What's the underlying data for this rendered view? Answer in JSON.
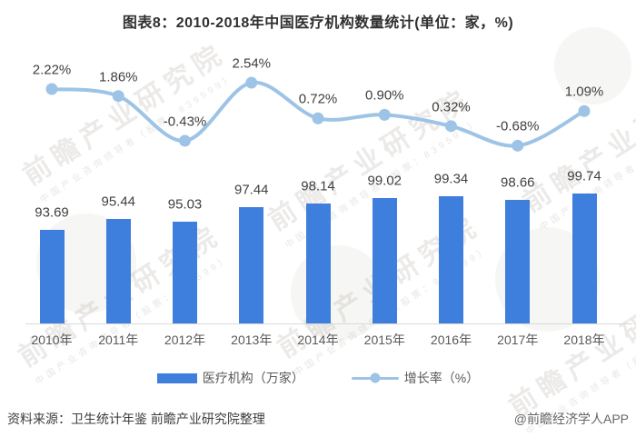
{
  "chart_data": {
    "type": "bar+line",
    "title": "图表8：2010-2018年中国医疗机构数量统计(单位：家，%)",
    "xlabel": "",
    "ylabel": "",
    "grid": false,
    "legend_position": "bottom",
    "value_axis_visible": false,
    "categories": [
      "2010年",
      "2011年",
      "2012年",
      "2013年",
      "2014年",
      "2015年",
      "2016年",
      "2017年",
      "2018年"
    ],
    "series": [
      {
        "name": "医疗机构（万家）",
        "type": "bar",
        "color": "#3e7edc",
        "values": [
          93.69,
          95.44,
          95.03,
          97.44,
          98.14,
          99.02,
          99.34,
          98.66,
          99.74
        ],
        "labels": [
          "93.69",
          "95.44",
          "95.03",
          "97.44",
          "98.14",
          "99.02",
          "99.34",
          "98.66",
          "99.74"
        ]
      },
      {
        "name": "增长率（%）",
        "type": "line",
        "color": "#9dc3e6",
        "values": [
          2.22,
          1.86,
          -0.43,
          2.54,
          0.72,
          0.9,
          0.32,
          -0.68,
          1.09
        ],
        "labels": [
          "2.22%",
          "1.86%",
          "-0.43%",
          "2.54%",
          "0.72%",
          "0.90%",
          "0.32%",
          "-0.68%",
          "1.09%"
        ]
      }
    ]
  },
  "legend": {
    "items": [
      {
        "label": "医疗机构（万家）",
        "swatch": "bar-swatch"
      },
      {
        "label": "增长率（%）",
        "swatch": "line-swatch"
      }
    ]
  },
  "footer": {
    "source": "资料来源：卫生统计年鉴 前瞻产业研究院整理",
    "credit": "@前瞻经济学人APP"
  },
  "watermark": {
    "text": "前瞻产业研究院",
    "subtext": "中国产业咨询领导者（股票：839599）",
    "logo": "qianzhan-logo-circle"
  },
  "colors": {
    "bar": "#3e7edc",
    "line": "#9dc3e6",
    "title_text": "#303030",
    "value_label": "#404040",
    "axis_label": "#595959",
    "axis_line": "#d9d9d9"
  }
}
